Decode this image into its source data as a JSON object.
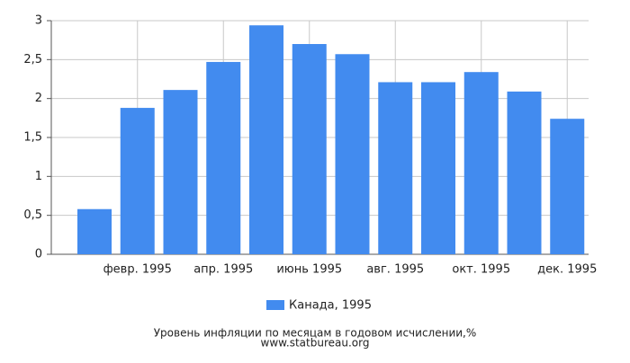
{
  "chart_data": {
    "type": "bar",
    "title": "Уровень инфляции по месяцам в годовом исчислении,%",
    "source": "www.statbureau.org",
    "categories": [
      null,
      "февр. 1995",
      null,
      "апр. 1995",
      null,
      "июнь 1995",
      null,
      "авг. 1995",
      null,
      "окт. 1995",
      null,
      "дек. 1995"
    ],
    "series": [
      {
        "name": "Канада, 1995",
        "color": "#428bef",
        "values": [
          0.58,
          1.88,
          2.11,
          2.47,
          2.94,
          2.7,
          2.57,
          2.21,
          2.21,
          2.34,
          2.09,
          1.74
        ]
      }
    ],
    "ylim": [
      0,
      3
    ],
    "yticks": [
      0,
      {
        "value": 0.5,
        "label": "0,5"
      },
      1,
      {
        "value": 1.5,
        "label": "1,5"
      },
      2,
      {
        "value": 2.5,
        "label": "2,5"
      },
      3
    ],
    "grid": true,
    "legend": "bottom"
  }
}
